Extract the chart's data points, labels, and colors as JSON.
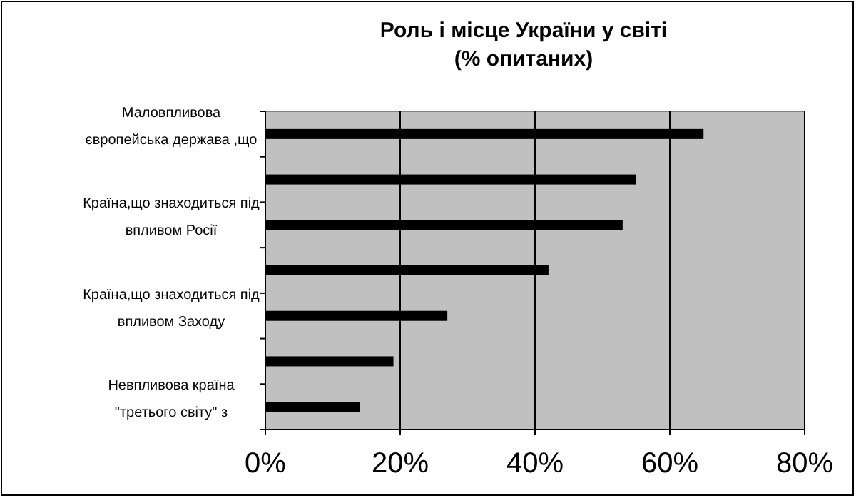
{
  "chart_data": {
    "type": "bar",
    "orientation": "horizontal",
    "title": "Роль і місце України у світі\n(% опитаних)",
    "categories": [
      "Маловпливова\nєвропейська держава ,що",
      null,
      "Країна,що знаходиться під\nвпливом Росії",
      null,
      "Країна,що знаходиться під\nвпливом Заходу",
      null,
      "Невпливова країна\n\"третього світу\" з"
    ],
    "values": [
      65,
      55,
      53,
      42,
      27,
      19,
      14
    ],
    "color": "#000000",
    "xlim": [
      0,
      80
    ],
    "xticks": [
      {
        "value": 0,
        "label": "0%"
      },
      {
        "value": 20,
        "label": "20%"
      },
      {
        "value": 40,
        "label": "40%"
      },
      {
        "value": 60,
        "label": "60%"
      },
      {
        "value": 80,
        "label": "80%"
      }
    ],
    "grid": "x"
  }
}
